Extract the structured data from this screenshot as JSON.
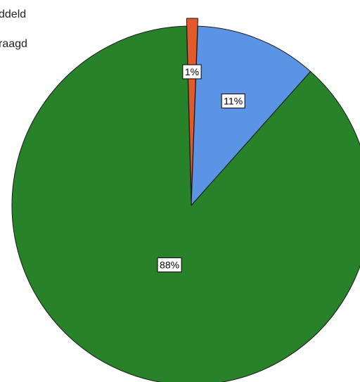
{
  "chart_data": {
    "type": "pie",
    "legend_position": "top-left",
    "legend_entries": [
      "ddeld",
      "raagd"
    ],
    "slices": [
      {
        "label": "1%",
        "value": 1,
        "color": "#e2592a"
      },
      {
        "label": "11%",
        "value": 11,
        "color": "#5b93e5"
      },
      {
        "label": "88%",
        "value": 88,
        "color": "#27822a"
      }
    ],
    "start_angle_deg": -1.5,
    "exploded_slice": 0,
    "edge_color": "#1a1a1a"
  }
}
